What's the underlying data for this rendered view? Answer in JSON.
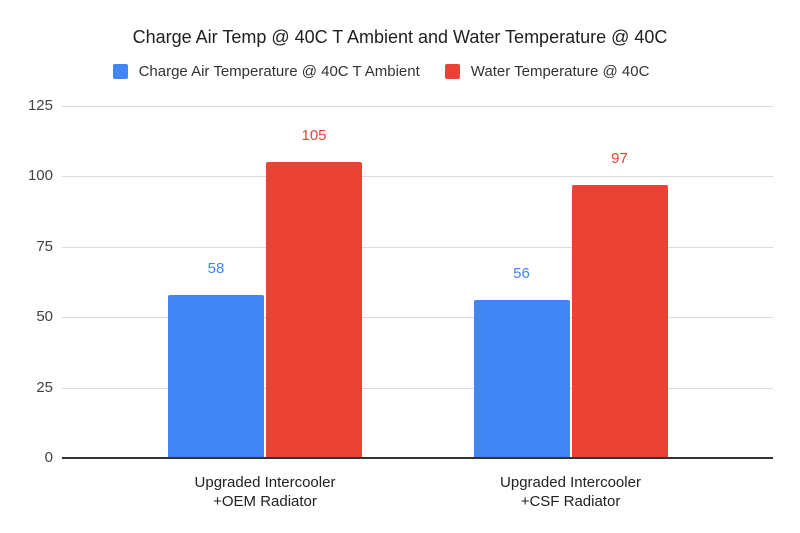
{
  "chart_data": {
    "type": "bar",
    "title": "Charge Air Temp @ 40C T Ambient and Water Temperature @ 40C",
    "categories": [
      "Upgraded Intercooler\n+OEM Radiator",
      "Upgraded Intercooler\n+CSF Radiator"
    ],
    "series": [
      {
        "name": "Charge Air Temperature @ 40C T Ambient",
        "color": "#4285F4",
        "values": [
          58,
          56
        ]
      },
      {
        "name": "Water Temperature @ 40C",
        "color": "#EA4335",
        "values": [
          105,
          97
        ]
      }
    ],
    "xlabel": "",
    "ylabel": "",
    "ylim": [
      0,
      125
    ],
    "yticks": [
      0,
      25,
      50,
      75,
      100,
      125
    ],
    "grid": true,
    "legend_position": "top",
    "data_labels": true,
    "background_color": "#ffffff",
    "gridline_color": "#dadce0",
    "axis_line_color": "#333333"
  }
}
